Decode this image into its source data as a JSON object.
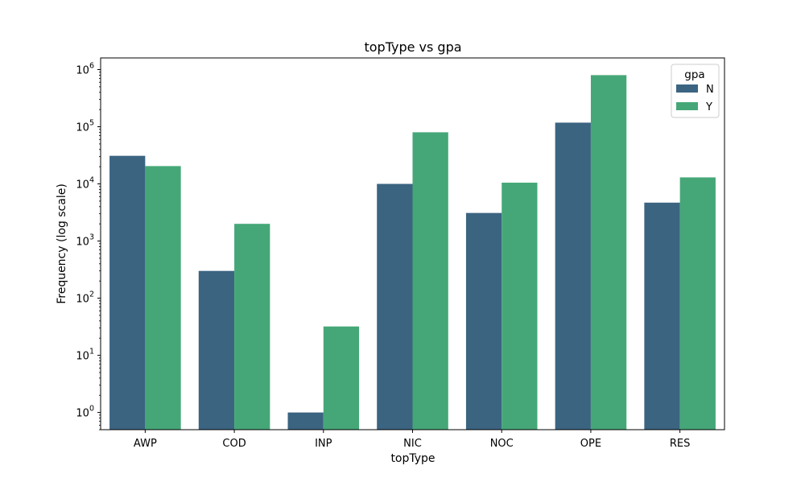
{
  "chart_data": {
    "type": "bar",
    "title": "topType vs gpa",
    "xlabel": "topType",
    "ylabel": "Frequency (log scale)",
    "yscale": "log",
    "ylim": [
      0.5,
      1600000
    ],
    "yticks": [
      1,
      10,
      100,
      1000,
      10000,
      100000,
      1000000
    ],
    "ytick_labels": [
      {
        "base": "10",
        "exp": "0"
      },
      {
        "base": "10",
        "exp": "1"
      },
      {
        "base": "10",
        "exp": "2"
      },
      {
        "base": "10",
        "exp": "3"
      },
      {
        "base": "10",
        "exp": "4"
      },
      {
        "base": "10",
        "exp": "5"
      },
      {
        "base": "10",
        "exp": "6"
      }
    ],
    "categories": [
      "AWP",
      "COD",
      "INP",
      "NIC",
      "NOC",
      "OPE",
      "RES"
    ],
    "series": [
      {
        "name": "N",
        "color": "#3b6481",
        "values": [
          31000,
          300,
          1,
          10000,
          3100,
          118000,
          4700
        ]
      },
      {
        "name": "Y",
        "color": "#45a777",
        "values": [
          20500,
          2000,
          32,
          80000,
          10500,
          800000,
          13000
        ]
      }
    ],
    "legend": {
      "title": "gpa",
      "placement": "top-right"
    },
    "grid": false
  }
}
